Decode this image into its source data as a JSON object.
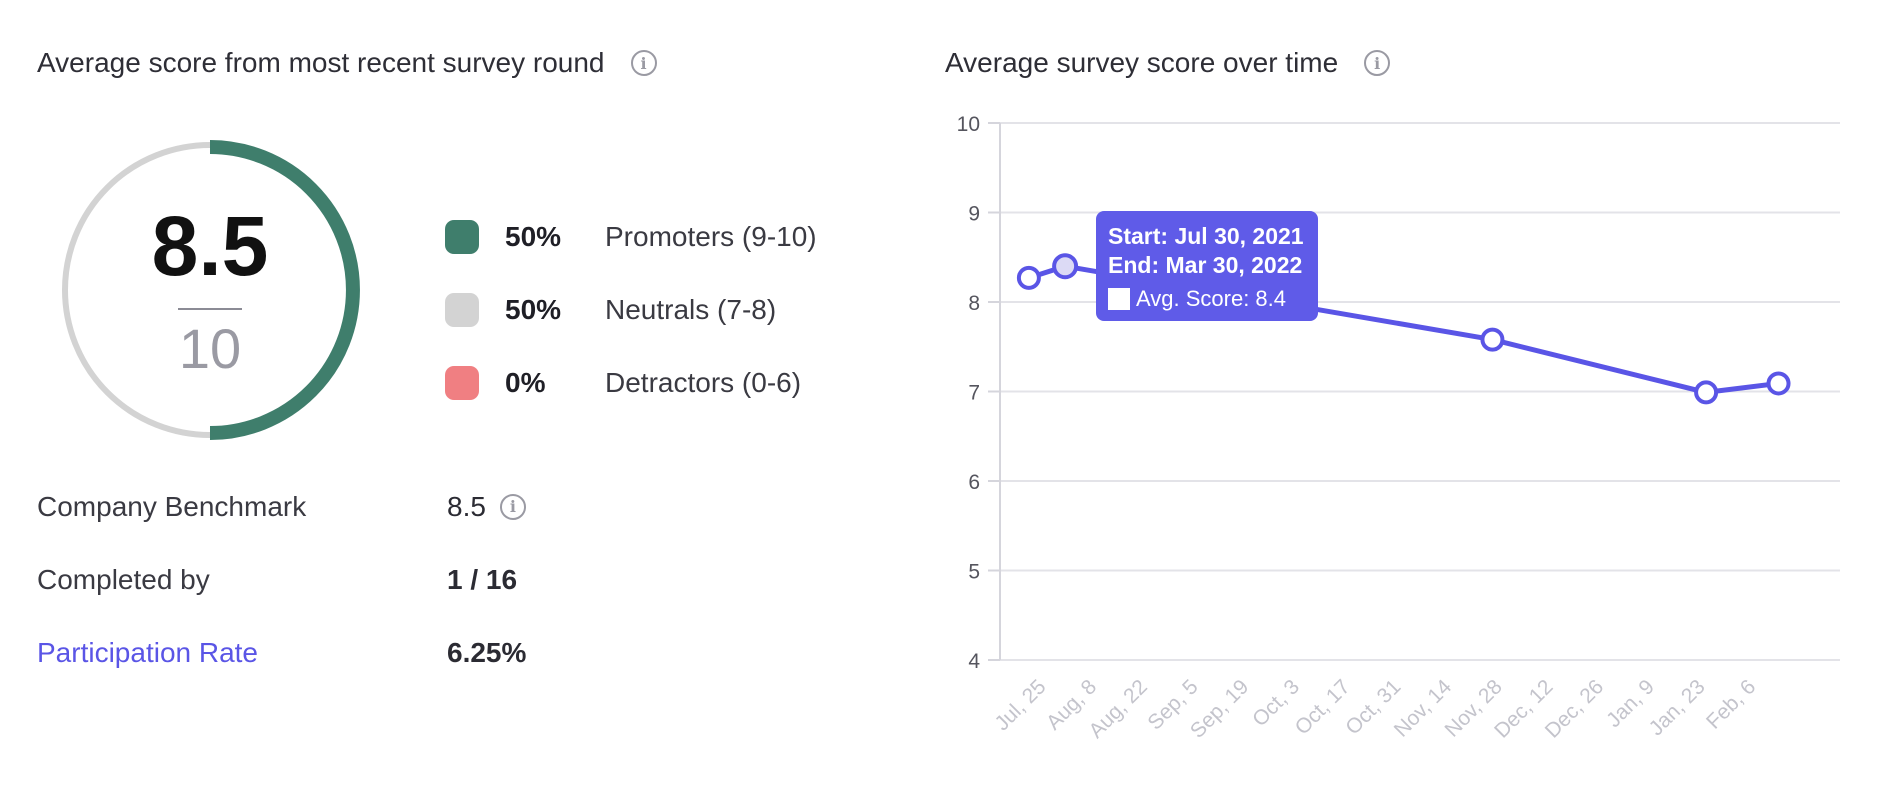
{
  "left_panel": {
    "title": "Average score from most recent survey round",
    "gauge": {
      "score": "8.5",
      "max": "10",
      "fill_fraction": 0.5,
      "fill_color": "#3f7e6c",
      "track_color": "#d3d3d3"
    },
    "legend": [
      {
        "pct": "50%",
        "label": "Promoters (9-10)",
        "color": "#3f7e6c"
      },
      {
        "pct": "50%",
        "label": "Neutrals (7-8)",
        "color": "#d3d3d3"
      },
      {
        "pct": "0%",
        "label": "Detractors (0-6)",
        "color": "#f07f82"
      }
    ],
    "stats": [
      {
        "label": "Company Benchmark",
        "value": "8.5"
      },
      {
        "label": "Completed by",
        "value": "1 / 16"
      },
      {
        "label": "Participation Rate",
        "value": "6.25%"
      }
    ]
  },
  "right_panel": {
    "title": "Average survey score over time"
  },
  "tooltip": {
    "start": "Start: Jul 30, 2021",
    "end": "End: Mar 30, 2022",
    "score": "Avg. Score: 8.4"
  },
  "chart_data": {
    "type": "line",
    "title": "Average survey score over time",
    "xlabel": "",
    "ylabel": "",
    "ylim": [
      4,
      10
    ],
    "yticks": [
      "4",
      "5",
      "6",
      "7",
      "8",
      "9",
      "10"
    ],
    "xticks": [
      "Jul, 25",
      "Aug, 8",
      "Aug, 22",
      "Sep, 5",
      "Sep, 19",
      "Oct, 3",
      "Oct, 17",
      "Oct, 31",
      "Nov, 14",
      "Nov, 28",
      "Dec, 12",
      "Dec, 26",
      "Jan, 9",
      "Jan, 23",
      "Feb, 6"
    ],
    "x": [
      "2021-07-20",
      "2021-07-30",
      "2021-11-25",
      "2022-01-23",
      "2022-02-12"
    ],
    "series": [
      {
        "values": [
          8.27,
          8.4,
          7.58,
          6.99,
          7.09
        ]
      }
    ],
    "highlight_index": 1,
    "line_color": "#5a55e6",
    "grid": true
  }
}
